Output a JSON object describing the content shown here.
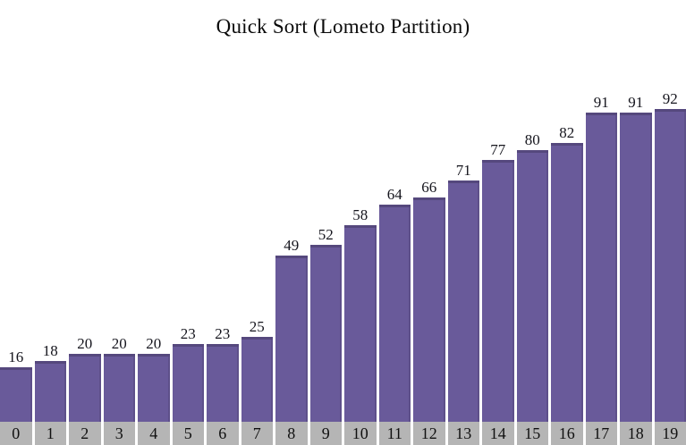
{
  "window": {
    "background": "#ffffff"
  },
  "chart_data": {
    "type": "bar",
    "title": "Quick Sort (Lometo Partition)",
    "categories": [
      "0",
      "1",
      "2",
      "3",
      "4",
      "5",
      "6",
      "7",
      "8",
      "9",
      "10",
      "11",
      "12",
      "13",
      "14",
      "15",
      "16",
      "17",
      "18",
      "19"
    ],
    "values": [
      16,
      18,
      20,
      20,
      20,
      23,
      23,
      25,
      49,
      52,
      58,
      64,
      66,
      71,
      77,
      80,
      82,
      91,
      91,
      92
    ],
    "xlabel": "",
    "ylabel": "",
    "ylim": [
      0,
      92
    ],
    "grid": false,
    "legend": "none",
    "value_labels_shown": true,
    "index_labels_shown": true,
    "colors": {
      "bar": "#695a9a",
      "bar_top_edge": "#55487d",
      "index_strip": "#b5b5b5",
      "value_label": "#16161e",
      "index_label": "#101010",
      "title": "#0a0a0a",
      "background": "#ffffff"
    }
  }
}
